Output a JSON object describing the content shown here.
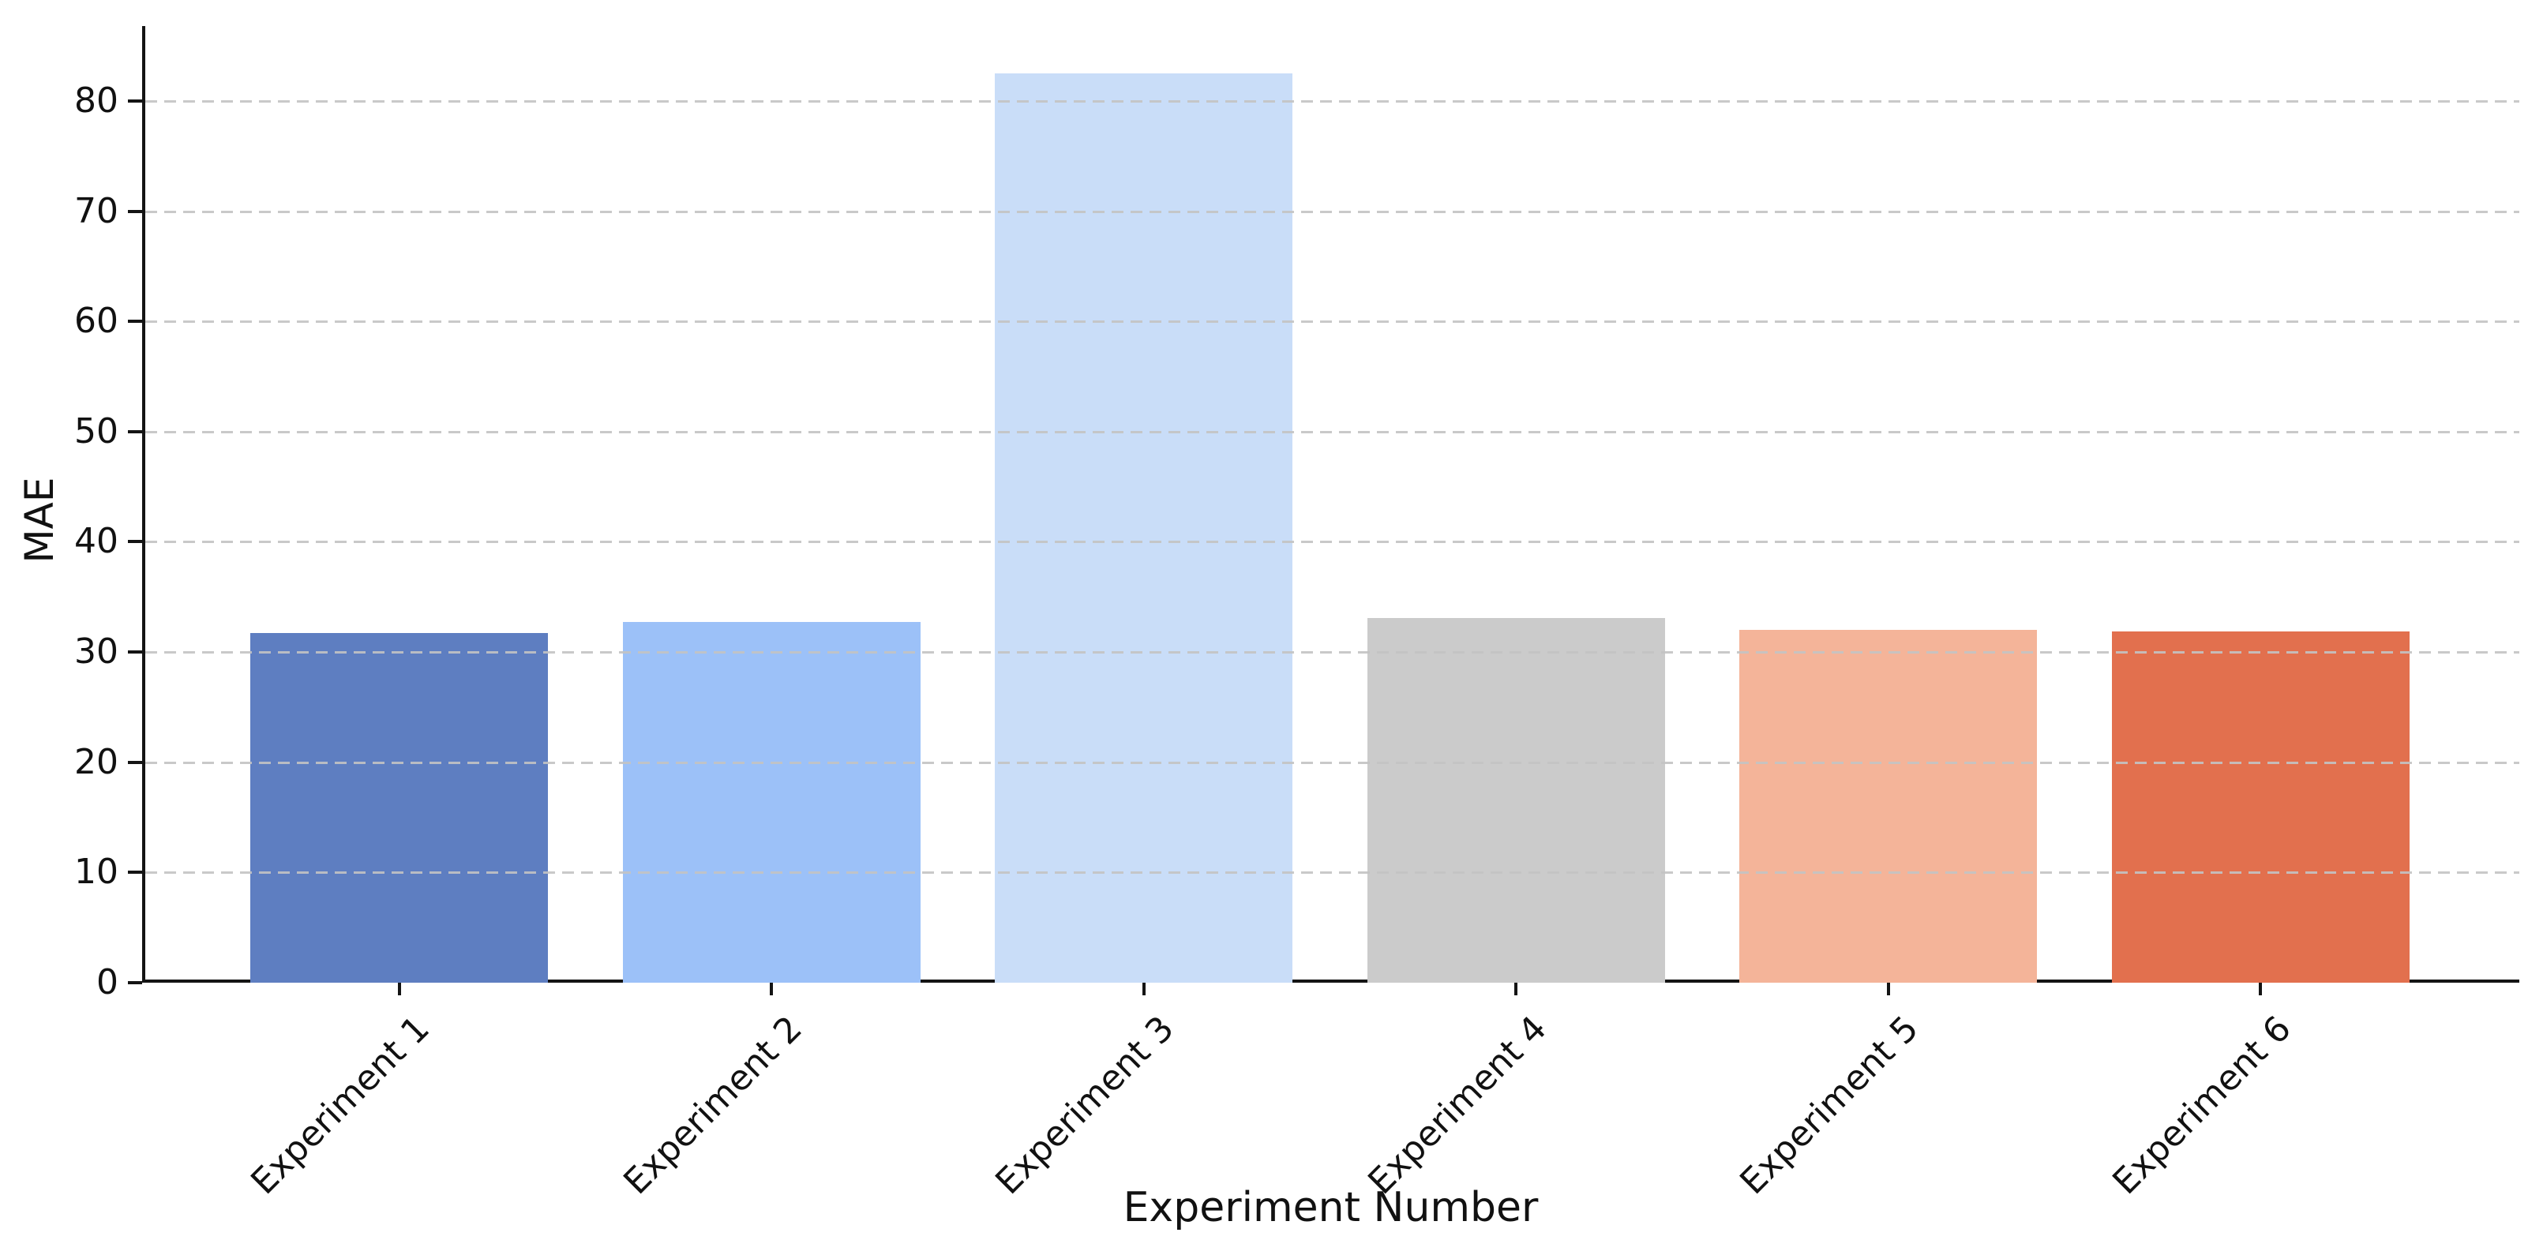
{
  "chart_data": {
    "type": "bar",
    "title": "",
    "xlabel": "Experiment Number",
    "ylabel": "MAE",
    "categories": [
      "Experiment 1",
      "Experiment 2",
      "Experiment 3",
      "Experiment 4",
      "Experiment 5",
      "Experiment 6"
    ],
    "values": [
      31.7,
      32.7,
      82.5,
      33.1,
      32.0,
      31.9
    ],
    "bar_colors": [
      "#5e7ec1",
      "#9cc1f8",
      "#c9ddf8",
      "#cbcbcb",
      "#f4b499",
      "#e2704e"
    ],
    "yticks": [
      0,
      10,
      20,
      30,
      40,
      50,
      60,
      70,
      80
    ],
    "ylim": [
      0,
      86.8
    ],
    "grid": "horizontal-dashed-gray-over-bars",
    "gridline_color": "#c3c3c3",
    "spine_color": "#141414",
    "background_color": "#ffffff",
    "legend": "none",
    "x_tick_rotation_deg": 45
  }
}
